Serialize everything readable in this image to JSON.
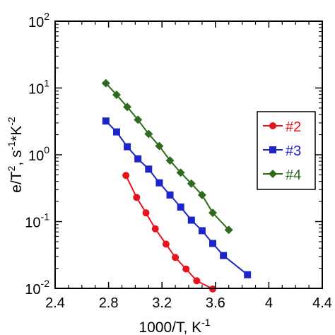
{
  "chart_data": {
    "type": "scatter",
    "xlabel": {
      "base": "1000/T, K",
      "sup": "-1"
    },
    "ylabel": {
      "parts": [
        {
          "t": "e/T"
        },
        {
          "t": "2",
          "sup": true
        },
        {
          "t": ", s"
        },
        {
          "t": "-1",
          "sup": true
        },
        {
          "t": "*K"
        },
        {
          "t": "-2",
          "sup": true
        }
      ]
    },
    "xlim": [
      2.4,
      4.4
    ],
    "ylim_log10": [
      -2,
      2
    ],
    "yscale": "log",
    "x_ticks": [
      "2.4",
      "2.8",
      "3.2",
      "3.6",
      "4",
      "4.4"
    ],
    "x_tick_values": [
      2.4,
      2.8,
      3.2,
      3.6,
      4.0,
      4.4
    ],
    "y_ticks": [
      {
        "base": "10",
        "exp": "-2",
        "value": -2
      },
      {
        "base": "10",
        "exp": "-1",
        "value": -1
      },
      {
        "base": "10",
        "exp": "0",
        "value": 0
      },
      {
        "base": "10",
        "exp": "1",
        "value": 1
      },
      {
        "base": "10",
        "exp": "2",
        "value": 2
      }
    ],
    "grid": false,
    "legend_position": "right",
    "series": [
      {
        "name": "#2",
        "color": "#e8141c",
        "marker": "circle",
        "x": [
          2.93,
          3.01,
          3.08,
          3.15,
          3.23,
          3.3,
          3.38,
          3.46,
          3.58
        ],
        "y": [
          0.49,
          0.23,
          0.135,
          0.078,
          0.046,
          0.029,
          0.0195,
          0.013,
          0.0098
        ]
      },
      {
        "name": "#3",
        "color": "#1b25c9",
        "marker": "square",
        "x": [
          2.78,
          2.86,
          2.94,
          3.02,
          3.1,
          3.18,
          3.26,
          3.34,
          3.42,
          3.5,
          3.58,
          3.66,
          3.84
        ],
        "y": [
          3.2,
          2.2,
          1.32,
          0.87,
          0.61,
          0.38,
          0.25,
          0.165,
          0.105,
          0.073,
          0.047,
          0.031,
          0.016
        ]
      },
      {
        "name": "#4",
        "color": "#2e6b1e",
        "marker": "diamond",
        "x": [
          2.78,
          2.86,
          2.94,
          3.02,
          3.1,
          3.18,
          3.26,
          3.34,
          3.42,
          3.5,
          3.58,
          3.7
        ],
        "y": [
          11.8,
          7.9,
          5.2,
          3.35,
          2.05,
          1.35,
          0.82,
          0.54,
          0.37,
          0.25,
          0.135,
          0.075
        ]
      }
    ]
  }
}
